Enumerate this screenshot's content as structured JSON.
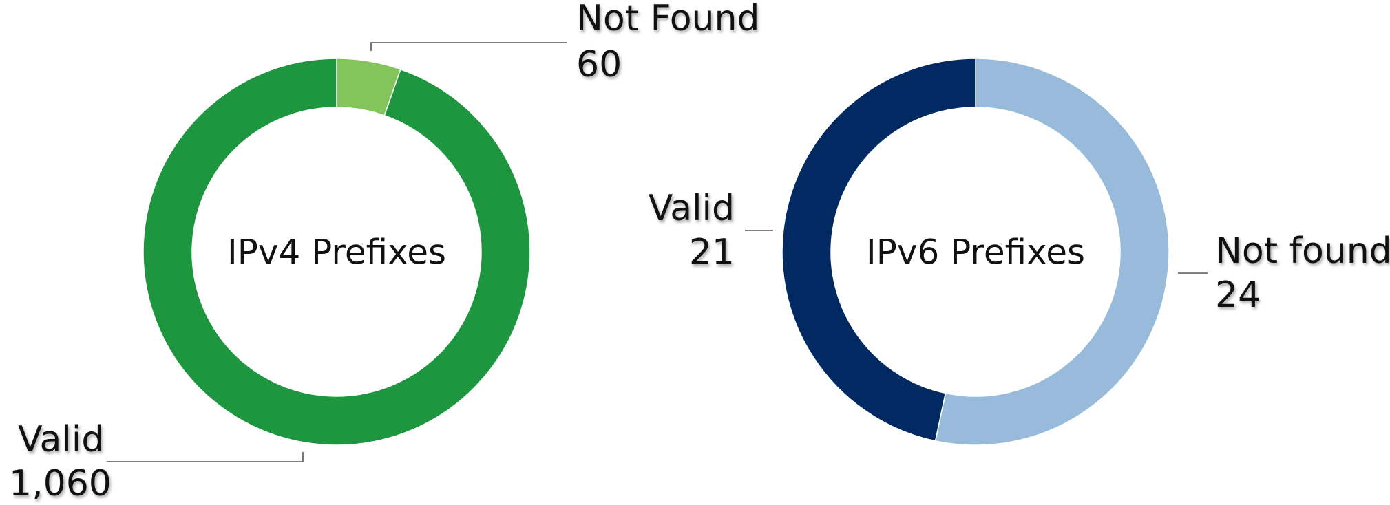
{
  "chart_data": [
    {
      "type": "pie",
      "donut": true,
      "title": "IPv4 Prefixes",
      "categories": [
        "Not Found",
        "Valid"
      ],
      "values": [
        60,
        1060
      ],
      "value_labels": [
        "60",
        "1,060"
      ],
      "colors": [
        "#82c55a",
        "#1e9640"
      ]
    },
    {
      "type": "pie",
      "donut": true,
      "title": "IPv6 Prefixes",
      "categories": [
        "Not found",
        "Valid"
      ],
      "values": [
        24,
        21
      ],
      "colors": [
        "#98bbdc",
        "#022a62"
      ]
    }
  ]
}
